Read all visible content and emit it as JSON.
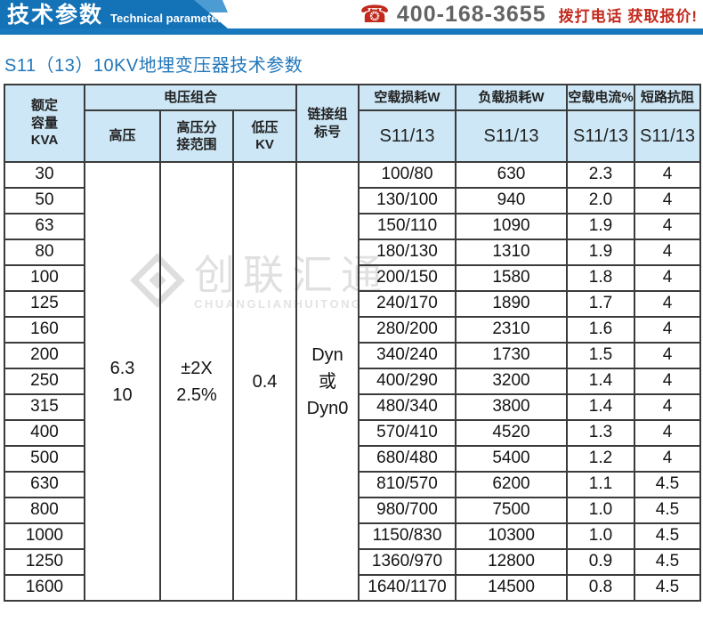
{
  "banner": {
    "title_cn": "技术参数",
    "title_en": "Technical parameter",
    "phone_icon": "phone-icon",
    "phone_number": "400-168-3655",
    "cta": "拨打电话 获取报价!"
  },
  "page_title": "S11（13）10KV地埋变压器技术参数",
  "watermark": {
    "logo_icon": "diamond-logo-icon",
    "name_cn": "创联汇通",
    "name_en": "CHUANGLIANHUITONG"
  },
  "colors": {
    "banner_blue": "#1472b7",
    "bar_blue": "#1778bd",
    "accent_blue": "#4d9bd3",
    "header_cell_bg": "#cde7f6",
    "title_blue": "#2277bb",
    "red": "#c32a1e",
    "phone_gray": "#636363"
  },
  "table": {
    "columns": {
      "kva": "额定\n容量\nKVA",
      "voltage_group": "电压组合",
      "hv": "高压",
      "hv_tap": "高压分\n接范围",
      "lv": "低压\nKV",
      "vector_group": "链接组\n标号",
      "no_load_loss": "空载损耗W",
      "load_loss": "负载损耗W",
      "no_load_current": "空载电流%",
      "impedance": "短路抗阻",
      "model": "S11/13"
    },
    "merged": {
      "hv": "6.3\n10",
      "hv_tap": "±2X\n2.5%",
      "lv": "0.4",
      "vector_group": "Dyn\n或\nDyn0"
    },
    "rows": [
      {
        "kva": "30",
        "no_load_loss": "100/80",
        "load_loss": "630",
        "no_load_current": "2.3",
        "impedance": "4"
      },
      {
        "kva": "50",
        "no_load_loss": "130/100",
        "load_loss": "940",
        "no_load_current": "2.0",
        "impedance": "4"
      },
      {
        "kva": "63",
        "no_load_loss": "150/110",
        "load_loss": "1090",
        "no_load_current": "1.9",
        "impedance": "4"
      },
      {
        "kva": "80",
        "no_load_loss": "180/130",
        "load_loss": "1310",
        "no_load_current": "1.9",
        "impedance": "4"
      },
      {
        "kva": "100",
        "no_load_loss": "200/150",
        "load_loss": "1580",
        "no_load_current": "1.8",
        "impedance": "4"
      },
      {
        "kva": "125",
        "no_load_loss": "240/170",
        "load_loss": "1890",
        "no_load_current": "1.7",
        "impedance": "4"
      },
      {
        "kva": "160",
        "no_load_loss": "280/200",
        "load_loss": "2310",
        "no_load_current": "1.6",
        "impedance": "4"
      },
      {
        "kva": "200",
        "no_load_loss": "340/240",
        "load_loss": "1730",
        "no_load_current": "1.5",
        "impedance": "4"
      },
      {
        "kva": "250",
        "no_load_loss": "400/290",
        "load_loss": "3200",
        "no_load_current": "1.4",
        "impedance": "4"
      },
      {
        "kva": "315",
        "no_load_loss": "480/340",
        "load_loss": "3800",
        "no_load_current": "1.4",
        "impedance": "4"
      },
      {
        "kva": "400",
        "no_load_loss": "570/410",
        "load_loss": "4520",
        "no_load_current": "1.3",
        "impedance": "4"
      },
      {
        "kva": "500",
        "no_load_loss": "680/480",
        "load_loss": "5400",
        "no_load_current": "1.2",
        "impedance": "4"
      },
      {
        "kva": "630",
        "no_load_loss": "810/570",
        "load_loss": "6200",
        "no_load_current": "1.1",
        "impedance": "4.5"
      },
      {
        "kva": "800",
        "no_load_loss": "980/700",
        "load_loss": "7500",
        "no_load_current": "1.0",
        "impedance": "4.5"
      },
      {
        "kva": "1000",
        "no_load_loss": "1150/830",
        "load_loss": "10300",
        "no_load_current": "1.0",
        "impedance": "4.5"
      },
      {
        "kva": "1250",
        "no_load_loss": "1360/970",
        "load_loss": "12800",
        "no_load_current": "0.9",
        "impedance": "4.5"
      },
      {
        "kva": "1600",
        "no_load_loss": "1640/1170",
        "load_loss": "14500",
        "no_load_current": "0.8",
        "impedance": "4.5"
      }
    ]
  }
}
